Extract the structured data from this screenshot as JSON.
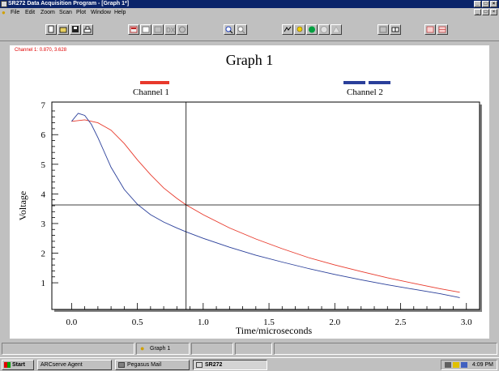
{
  "window": {
    "title": "SR272 Data Acquisition Program - [Graph 1*]",
    "controls": [
      "_",
      "□",
      "×"
    ]
  },
  "menu": [
    "File",
    "Edit",
    "Zoom",
    "Scan",
    "Plot",
    "Window",
    "Help"
  ],
  "toolbar": {
    "icons": [
      "new-icon",
      "open-icon",
      "save-icon",
      "print-icon",
      "cut-icon",
      "copy-icon",
      "paste-icon",
      "undo-icon",
      "redo-icon",
      "zoom-in-icon",
      "zoom-out-icon",
      "scan-icon",
      "bulb-icon",
      "go-icon",
      "stop-icon",
      "up-icon",
      "window-icon",
      "split-icon",
      "graph-icon",
      "grid-icon"
    ]
  },
  "graph": {
    "readout": "Channel 1: 0.870, 3.628",
    "cursor": {
      "x": 0.87,
      "y": 3.628
    },
    "colors": {
      "channel1": "#e8392b",
      "channel2": "#2a3f9a"
    }
  },
  "chart_data": {
    "type": "line",
    "title": "Graph 1",
    "xlabel": "Time/microseconds",
    "ylabel": "Voltage",
    "xlim": [
      -0.15,
      3.1
    ],
    "ylim": [
      0.1,
      7.1
    ],
    "xticks": [
      "0.0",
      "0.5",
      "1.0",
      "1.5",
      "2.0",
      "2.5",
      "3.0"
    ],
    "yticks": [
      "1",
      "2",
      "3",
      "4",
      "5",
      "6",
      "7"
    ],
    "legend": "top",
    "series": [
      {
        "name": "Channel 1",
        "x": [
          0.0,
          0.1,
          0.2,
          0.3,
          0.4,
          0.5,
          0.6,
          0.7,
          0.8,
          0.87,
          1.0,
          1.2,
          1.4,
          1.6,
          1.8,
          2.0,
          2.2,
          2.4,
          2.6,
          2.8,
          2.95
        ],
        "y": [
          6.45,
          6.5,
          6.4,
          6.15,
          5.7,
          5.15,
          4.65,
          4.2,
          3.85,
          3.63,
          3.3,
          2.85,
          2.48,
          2.15,
          1.85,
          1.6,
          1.38,
          1.17,
          0.98,
          0.8,
          0.68
        ]
      },
      {
        "name": "Channel 2",
        "x": [
          0.0,
          0.05,
          0.1,
          0.15,
          0.2,
          0.3,
          0.4,
          0.5,
          0.6,
          0.7,
          0.8,
          0.87,
          1.0,
          1.2,
          1.4,
          1.6,
          1.8,
          2.0,
          2.2,
          2.4,
          2.6,
          2.8,
          2.95
        ],
        "y": [
          6.45,
          6.72,
          6.65,
          6.35,
          5.9,
          4.9,
          4.15,
          3.65,
          3.3,
          3.05,
          2.85,
          2.72,
          2.5,
          2.2,
          1.93,
          1.7,
          1.48,
          1.28,
          1.1,
          0.93,
          0.78,
          0.63,
          0.5
        ]
      }
    ]
  },
  "status": {
    "mdi_tab": "Graph 1"
  },
  "taskbar": {
    "start": "Start",
    "buttons": [
      "ARCserve Agent",
      "Pegasus Mail",
      "SR272"
    ],
    "clock": "4:09 PM"
  }
}
